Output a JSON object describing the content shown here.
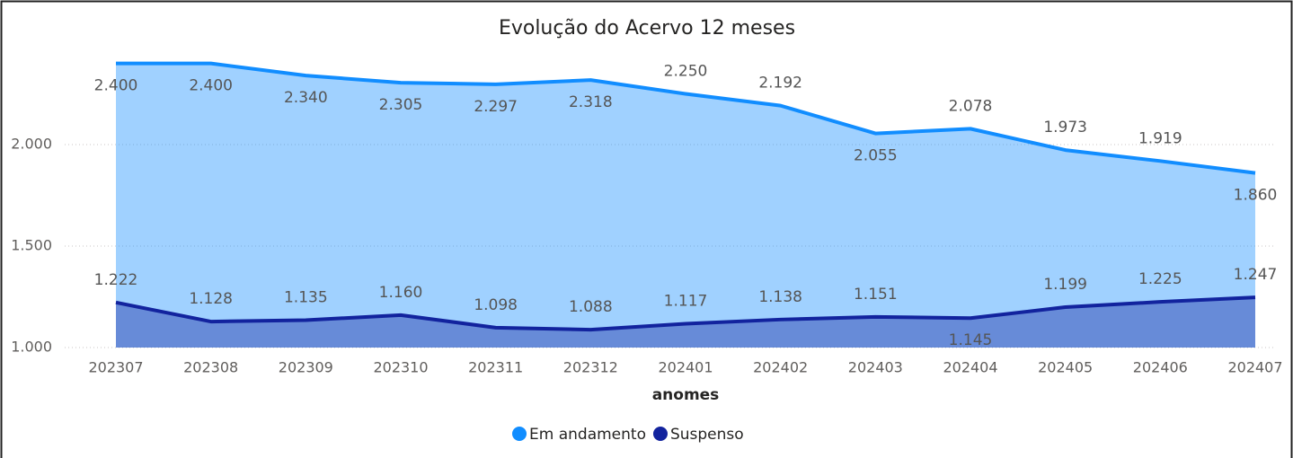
{
  "chart_data": {
    "type": "area",
    "title": "Evolução do Acervo 12 meses",
    "x_label": "anomes",
    "categories": [
      "202307",
      "202308",
      "202309",
      "202310",
      "202311",
      "202312",
      "202401",
      "202402",
      "202403",
      "202404",
      "202405",
      "202406",
      "202407"
    ],
    "series": [
      {
        "name": "Em andamento",
        "color": "#118DFF",
        "values": [
          2400,
          2400,
          2340,
          2305,
          2297,
          2318,
          2250,
          2192,
          2055,
          2078,
          1973,
          1919,
          1860
        ],
        "value_labels": [
          "2.400",
          "2.400",
          "2.340",
          "2.305",
          "2.297",
          "2.318",
          "2.250",
          "2.192",
          "2.055",
          "2.078",
          "1.973",
          "1.919",
          "1.860"
        ]
      },
      {
        "name": "Suspenso",
        "color": "#12239E",
        "values": [
          1222,
          1128,
          1135,
          1160,
          1098,
          1088,
          1117,
          1138,
          1151,
          1145,
          1199,
          1225,
          1247
        ],
        "value_labels": [
          "1.222",
          "1.128",
          "1.135",
          "1.160",
          "1.098",
          "1.088",
          "1.117",
          "1.138",
          "1.151",
          "1.145",
          "1.199",
          "1.225",
          "1.247"
        ]
      }
    ],
    "ylim": [
      1000,
      2500
    ],
    "yticks": [
      {
        "value": 1000,
        "label": "1.000"
      },
      {
        "value": 1500,
        "label": "1.500"
      },
      {
        "value": 2000,
        "label": "2.000"
      }
    ],
    "grid": true,
    "legend": "bottom"
  }
}
